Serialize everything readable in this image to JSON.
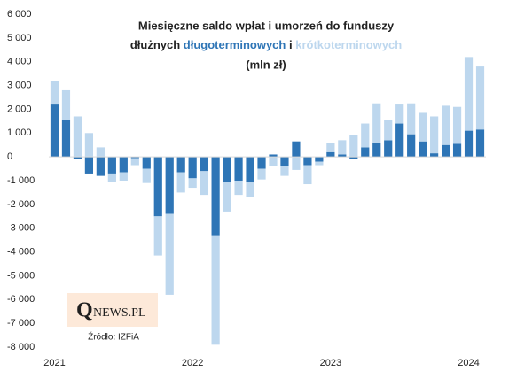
{
  "chart_data": {
    "type": "stacked_bar",
    "title_lines": [
      "Miesięczne saldo wpłat i umorzeń do funduszy",
      "dłużnych",
      "i",
      "(mln zł)"
    ],
    "categories": [
      "2021",
      null,
      null,
      null,
      null,
      null,
      null,
      null,
      null,
      null,
      null,
      null,
      "2022",
      null,
      null,
      null,
      null,
      null,
      null,
      null,
      null,
      null,
      null,
      null,
      "2023",
      null,
      null,
      null,
      null,
      null,
      null,
      null,
      null,
      null,
      null,
      null,
      "2024",
      null
    ],
    "series": [
      {
        "name": "długoterminowych",
        "color": "#2e75b6",
        "values": [
          2200,
          1550,
          -100,
          -700,
          -800,
          -700,
          -650,
          -50,
          -500,
          -2500,
          -2400,
          -650,
          -900,
          -600,
          -3300,
          -1050,
          -1000,
          -1050,
          -500,
          100,
          -400,
          650,
          -350,
          -200,
          200,
          100,
          -100,
          400,
          600,
          700,
          1400,
          950,
          650,
          150,
          500,
          550,
          1100,
          1150
        ]
      },
      {
        "name": "krótkoterminowych",
        "color": "#bdd7ee",
        "values": [
          1000,
          1250,
          1700,
          1000,
          400,
          -350,
          -350,
          -300,
          -600,
          -1650,
          -3400,
          -850,
          -400,
          -1000,
          -4600,
          -1250,
          -600,
          -650,
          -450,
          -400,
          -400,
          -550,
          -800,
          -150,
          400,
          600,
          900,
          1000,
          1650,
          850,
          800,
          1300,
          1200,
          1550,
          1650,
          1550,
          3100,
          2650
        ]
      }
    ],
    "ylim": [
      -8000,
      6000
    ],
    "yticks": [
      {
        "value": -8000,
        "label": "-8 000"
      },
      {
        "value": -7000,
        "label": "-7 000"
      },
      {
        "value": -6000,
        "label": "-6 000"
      },
      {
        "value": -5000,
        "label": "-5 000"
      },
      {
        "value": -4000,
        "label": "-4 000"
      },
      {
        "value": -3000,
        "label": "-3 000"
      },
      {
        "value": -2000,
        "label": "-2 000"
      },
      {
        "value": -1000,
        "label": "-1 000"
      },
      0,
      {
        "value": 1000,
        "label": "1 000"
      },
      {
        "value": 2000,
        "label": "2 000"
      },
      {
        "value": 3000,
        "label": "3 000"
      },
      {
        "value": 4000,
        "label": "4 000"
      },
      {
        "value": 5000,
        "label": "5 000"
      },
      {
        "value": 6000,
        "label": "6 000"
      }
    ],
    "logo": {
      "initial": "Q",
      "rest": "NEWS.PL"
    },
    "source": "Źródło: IZFiA"
  }
}
